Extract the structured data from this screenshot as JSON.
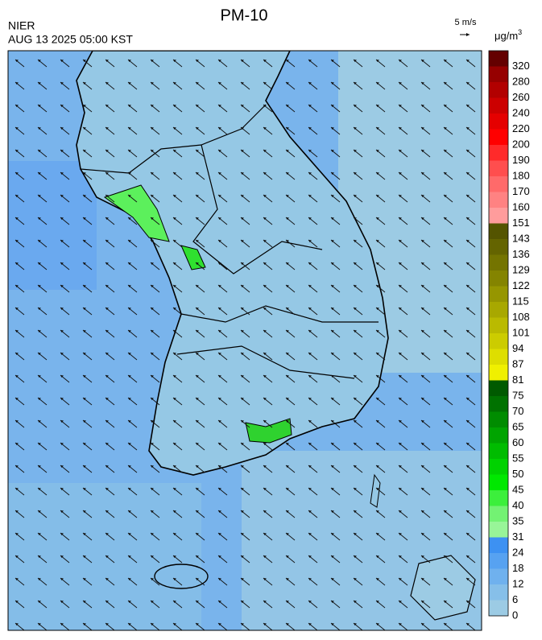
{
  "header": {
    "title": "PM-10",
    "source": "NIER",
    "timestamp": "AUG 13 2025 05:00 KST"
  },
  "wind_scale": {
    "label": "5 m/s"
  },
  "legend": {
    "unit_base": "μg/m",
    "unit_exponent": "3",
    "ticks": [
      0,
      6,
      12,
      18,
      24,
      31,
      35,
      40,
      45,
      50,
      55,
      60,
      65,
      70,
      75,
      81,
      87,
      94,
      101,
      108,
      115,
      122,
      129,
      136,
      143,
      151,
      160,
      170,
      180,
      190,
      200,
      220,
      240,
      260,
      280,
      320
    ],
    "colors": [
      "#9ccbe4",
      "#86bfe9",
      "#6fb1ee",
      "#57a2f1",
      "#3d91f2",
      "#98f598",
      "#73f273",
      "#3cef3c",
      "#00e800",
      "#00d200",
      "#00bc00",
      "#00a400",
      "#008c00",
      "#007200",
      "#005a00",
      "#f0f000",
      "#dede00",
      "#cccc00",
      "#baba00",
      "#a8a800",
      "#969600",
      "#848400",
      "#747400",
      "#646400",
      "#545400",
      "#ff9c9c",
      "#ff8282",
      "#ff6a6a",
      "#ff4e4e",
      "#ff2a2a",
      "#ff0000",
      "#e50000",
      "#cc0000",
      "#b20000",
      "#960000",
      "#640000"
    ]
  }
}
